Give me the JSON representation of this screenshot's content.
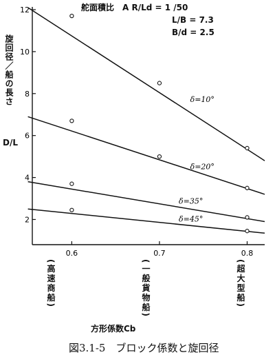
{
  "chart_data": {
    "type": "line",
    "caption": "図3.1-5　ブロック係数と旋回径",
    "parameters": [
      "舵面積比　A R/Ld = 1 /50",
      "L/B = 7.3",
      "B/d = 2.5"
    ],
    "ylabel_vertical": "旋回径／船の長さ",
    "ylabel": "D/L",
    "xlabel": "方形係数Cb",
    "xlim": [
      0.555,
      0.82
    ],
    "ylim": [
      0.8,
      12
    ],
    "x_ticks": [
      0.6,
      0.7,
      0.8
    ],
    "x_tick_labels": [
      "0.6",
      "0.7",
      "0.8"
    ],
    "y_ticks": [
      2,
      4,
      6,
      8,
      10,
      12
    ],
    "y_tick_labels": [
      "2",
      "4",
      "6",
      "8",
      "10",
      "12"
    ],
    "ship_types": [
      "(高速商船)",
      "(一般貨物船)",
      "(超大型船)"
    ],
    "series": [
      {
        "name": "δ=10°",
        "line": [
          [
            0.55,
            12.1
          ],
          [
            0.82,
            4.8
          ]
        ],
        "points": [
          [
            0.6,
            11.7
          ],
          [
            0.7,
            8.5
          ],
          [
            0.8,
            5.4
          ]
        ]
      },
      {
        "name": "δ=20°",
        "line": [
          [
            0.55,
            6.9
          ],
          [
            0.82,
            3.2
          ]
        ],
        "points": [
          [
            0.6,
            6.7
          ],
          [
            0.7,
            5.0
          ],
          [
            0.8,
            3.5
          ]
        ]
      },
      {
        "name": "δ=35°",
        "line": [
          [
            0.55,
            3.8
          ],
          [
            0.82,
            1.9
          ]
        ],
        "points": [
          [
            0.6,
            3.7
          ],
          [
            0.8,
            2.1
          ]
        ]
      },
      {
        "name": "δ=45°",
        "line": [
          [
            0.55,
            2.5
          ],
          [
            0.82,
            1.35
          ]
        ],
        "points": [
          [
            0.6,
            2.45
          ],
          [
            0.8,
            1.45
          ]
        ]
      }
    ]
  }
}
